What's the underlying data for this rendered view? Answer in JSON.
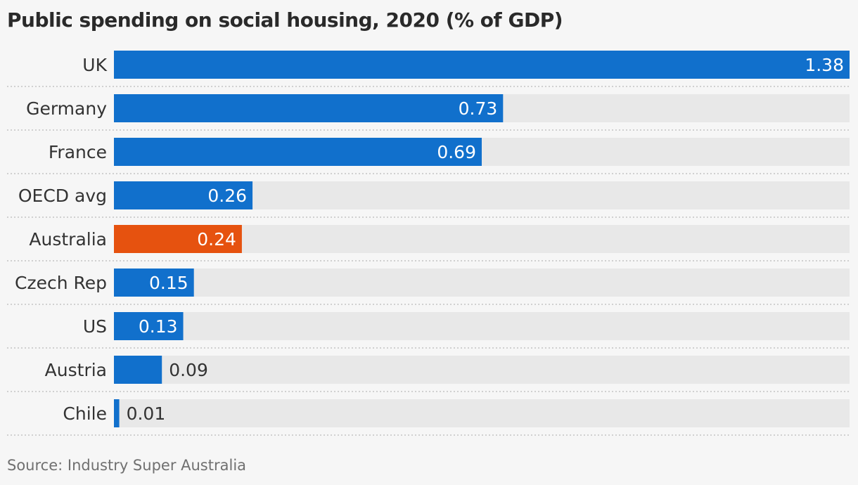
{
  "chart_data": {
    "type": "bar",
    "orientation": "horizontal",
    "title": "Public spending on social housing, 2020 (% of GDP)",
    "source": "Source: Industry Super Australia",
    "categories": [
      "UK",
      "Germany",
      "France",
      "OECD avg",
      "Australia",
      "Czech Rep",
      "US",
      "Austria",
      "Chile"
    ],
    "values": [
      1.38,
      0.73,
      0.69,
      0.26,
      0.24,
      0.15,
      0.13,
      0.09,
      0.01
    ],
    "value_labels": [
      "1.38",
      "0.73",
      "0.69",
      "0.26",
      "0.24",
      "0.15",
      "0.13",
      "0.09",
      "0.01"
    ],
    "highlight": "Australia",
    "xlim": [
      0,
      1.38
    ],
    "grid": false,
    "colors": {
      "bar": "#1170cc",
      "highlight": "#e6520f",
      "track": "#e8e8e8",
      "background": "#f6f6f6",
      "separator": "#c4c4c4",
      "label_inside": "#ffffff",
      "label_outside": "#333333"
    }
  }
}
